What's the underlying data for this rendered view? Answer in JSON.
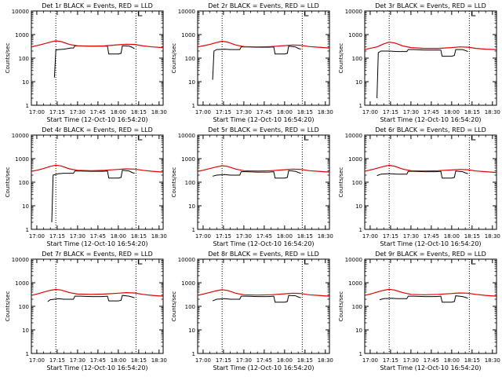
{
  "colors": {
    "events": "#000000",
    "lld": "#e00000",
    "axis": "#000000",
    "background": "#ffffff"
  },
  "xlabel": "Start Time (12-Oct-10 16:54:20)",
  "ylabel": "Counts/sec",
  "xticks": [
    "17:00",
    "17:15",
    "17:30",
    "17:45",
    "18:00",
    "18:15",
    "18:30"
  ],
  "yticks": [
    "1",
    "10",
    "100",
    "1000",
    "10000"
  ],
  "chart_data": [
    {
      "type": "line",
      "title": "Det 1r BLACK = Events, RED = LLD",
      "xlabel": "Start Time (12-Oct-10 16:54:20)",
      "ylabel": "Counts/sec",
      "y_scale": "log",
      "ylim": [
        1,
        10000
      ],
      "xlim": [
        "16:56",
        "18:33"
      ],
      "vlines": [
        "17:14",
        "18:13"
      ],
      "series": [
        {
          "x": [
            "17:13",
            "17:14",
            "17:16",
            "17:20",
            "17:25",
            "17:27",
            "17:28",
            "17:32",
            "17:40",
            "17:48",
            "17:52",
            "17:53",
            "18:00",
            "18:02",
            "18:03",
            "18:08",
            "18:10",
            "18:12"
          ],
          "y": [
            15,
            220,
            230,
            240,
            270,
            270,
            330,
            330,
            320,
            320,
            320,
            150,
            150,
            160,
            330,
            320,
            290,
            250
          ]
        },
        {
          "x": [
            "16:56",
            "17:00",
            "17:05",
            "17:10",
            "17:14",
            "17:18",
            "17:24",
            "17:30",
            "17:40",
            "17:50",
            "18:00",
            "18:06",
            "18:12",
            "18:18",
            "18:25",
            "18:33"
          ],
          "y": [
            300,
            340,
            400,
            480,
            540,
            500,
            380,
            330,
            320,
            330,
            370,
            390,
            380,
            330,
            300,
            280
          ]
        }
      ]
    },
    {
      "type": "line",
      "title": "Det 2r BLACK = Events, RED = LLD",
      "xlabel": "Start Time (12-Oct-10 16:54:20)",
      "ylabel": "Counts/sec",
      "y_scale": "log",
      "ylim": [
        1,
        10000
      ],
      "xlim": [
        "16:56",
        "18:33"
      ],
      "vlines": [
        "17:14",
        "18:13"
      ],
      "series": [
        {
          "x": [
            "17:07",
            "17:08",
            "17:10",
            "17:16",
            "17:20",
            "17:27",
            "17:28",
            "17:32",
            "17:40",
            "17:48",
            "17:52",
            "17:53",
            "18:00",
            "18:02",
            "18:03",
            "18:08",
            "18:10",
            "18:12"
          ],
          "y": [
            12,
            200,
            230,
            240,
            230,
            230,
            300,
            300,
            290,
            290,
            300,
            150,
            150,
            160,
            320,
            300,
            260,
            240
          ]
        },
        {
          "x": [
            "16:56",
            "17:00",
            "17:05",
            "17:10",
            "17:14",
            "17:18",
            "17:24",
            "17:30",
            "17:40",
            "17:50",
            "18:00",
            "18:06",
            "18:12",
            "18:18",
            "18:25",
            "18:33"
          ],
          "y": [
            300,
            330,
            380,
            460,
            520,
            480,
            360,
            310,
            300,
            310,
            340,
            360,
            350,
            310,
            290,
            270
          ]
        }
      ]
    },
    {
      "type": "line",
      "title": "Det 3r BLACK = Events, RED = LLD",
      "xlabel": "Start Time (12-Oct-10 16:54:20)",
      "ylabel": "Counts/sec",
      "y_scale": "log",
      "ylim": [
        1,
        10000
      ],
      "xlim": [
        "16:56",
        "18:33"
      ],
      "vlines": [
        "17:14",
        "18:13"
      ],
      "series": [
        {
          "x": [
            "17:05",
            "17:06",
            "17:08",
            "17:14",
            "17:20",
            "17:27",
            "17:28",
            "17:32",
            "17:40",
            "17:48",
            "17:52",
            "17:53",
            "18:00",
            "18:02",
            "18:03",
            "18:08",
            "18:10",
            "18:12"
          ],
          "y": [
            2,
            170,
            200,
            200,
            190,
            190,
            230,
            230,
            220,
            220,
            220,
            120,
            120,
            130,
            230,
            230,
            210,
            190
          ]
        },
        {
          "x": [
            "16:56",
            "17:00",
            "17:05",
            "17:10",
            "17:14",
            "17:18",
            "17:24",
            "17:30",
            "17:40",
            "17:50",
            "18:00",
            "18:06",
            "18:12",
            "18:18",
            "18:25",
            "18:33"
          ],
          "y": [
            230,
            260,
            300,
            400,
            480,
            440,
            330,
            280,
            260,
            260,
            280,
            300,
            290,
            260,
            240,
            230
          ]
        }
      ]
    },
    {
      "type": "line",
      "title": "Det 4r BLACK = Events, RED = LLD",
      "xlabel": "Start Time (12-Oct-10 16:54:20)",
      "ylabel": "Counts/sec",
      "y_scale": "log",
      "ylim": [
        1,
        10000
      ],
      "xlim": [
        "16:56",
        "18:33"
      ],
      "vlines": [
        "17:14",
        "18:13"
      ],
      "series": [
        {
          "x": [
            "17:11",
            "17:12",
            "17:16",
            "17:20",
            "17:27",
            "17:28",
            "17:32",
            "17:40",
            "17:48",
            "17:52",
            "17:53",
            "18:00",
            "18:02",
            "18:03",
            "18:08",
            "18:10",
            "18:12"
          ],
          "y": [
            2,
            200,
            230,
            240,
            240,
            300,
            300,
            290,
            290,
            300,
            150,
            150,
            160,
            320,
            300,
            260,
            240
          ]
        },
        {
          "x": [
            "16:56",
            "17:00",
            "17:05",
            "17:10",
            "17:14",
            "17:18",
            "17:24",
            "17:30",
            "17:40",
            "17:50",
            "18:00",
            "18:06",
            "18:12",
            "18:18",
            "18:25",
            "18:33"
          ],
          "y": [
            290,
            320,
            380,
            470,
            530,
            490,
            370,
            320,
            310,
            320,
            350,
            370,
            360,
            320,
            290,
            270
          ]
        }
      ]
    },
    {
      "type": "line",
      "title": "Det 5r BLACK = Events, RED = LLD",
      "xlabel": "Start Time (12-Oct-10 16:54:20)",
      "ylabel": "Counts/sec",
      "y_scale": "log",
      "ylim": [
        1,
        10000
      ],
      "xlim": [
        "16:56",
        "18:33"
      ],
      "vlines": [
        "17:14",
        "18:13"
      ],
      "series": [
        {
          "x": [
            "17:07",
            "17:10",
            "17:16",
            "17:20",
            "17:27",
            "17:28",
            "17:32",
            "17:40",
            "17:48",
            "17:52",
            "17:53",
            "18:00",
            "18:02",
            "18:03",
            "18:08",
            "18:10",
            "18:12"
          ],
          "y": [
            180,
            200,
            210,
            200,
            200,
            280,
            280,
            270,
            270,
            280,
            150,
            150,
            160,
            310,
            290,
            260,
            240
          ]
        },
        {
          "x": [
            "16:56",
            "17:00",
            "17:05",
            "17:10",
            "17:14",
            "17:18",
            "17:24",
            "17:30",
            "17:40",
            "17:50",
            "18:00",
            "18:06",
            "18:12",
            "18:18",
            "18:25",
            "18:33"
          ],
          "y": [
            290,
            320,
            380,
            450,
            500,
            470,
            360,
            310,
            300,
            310,
            340,
            360,
            350,
            310,
            290,
            270
          ]
        }
      ]
    },
    {
      "type": "line",
      "title": "Det 6r BLACK = Events, RED = LLD",
      "xlabel": "Start Time (12-Oct-10 16:54:20)",
      "ylabel": "Counts/sec",
      "y_scale": "log",
      "ylim": [
        1,
        10000
      ],
      "xlim": [
        "16:56",
        "18:33"
      ],
      "vlines": [
        "17:14",
        "18:13"
      ],
      "series": [
        {
          "x": [
            "17:05",
            "17:08",
            "17:14",
            "17:20",
            "17:27",
            "17:28",
            "17:32",
            "17:40",
            "17:48",
            "17:52",
            "17:53",
            "18:00",
            "18:02",
            "18:03",
            "18:08",
            "18:10",
            "18:12"
          ],
          "y": [
            190,
            220,
            230,
            220,
            220,
            290,
            290,
            280,
            280,
            290,
            150,
            150,
            160,
            300,
            280,
            250,
            230
          ]
        },
        {
          "x": [
            "16:56",
            "17:00",
            "17:05",
            "17:10",
            "17:14",
            "17:18",
            "17:24",
            "17:30",
            "17:40",
            "17:50",
            "18:00",
            "18:06",
            "18:12",
            "18:18",
            "18:25",
            "18:33"
          ],
          "y": [
            290,
            330,
            390,
            470,
            520,
            480,
            360,
            310,
            300,
            310,
            330,
            350,
            340,
            300,
            280,
            260
          ]
        }
      ]
    },
    {
      "type": "line",
      "title": "Det 7r BLACK = Events, RED = LLD",
      "xlabel": "Start Time (12-Oct-10 16:54:20)",
      "ylabel": "Counts/sec",
      "y_scale": "log",
      "ylim": [
        1,
        10000
      ],
      "xlim": [
        "16:56",
        "18:33"
      ],
      "vlines": [
        "17:14",
        "18:13"
      ],
      "series": [
        {
          "x": [
            "17:08",
            "17:10",
            "17:16",
            "17:20",
            "17:27",
            "17:28",
            "17:32",
            "17:40",
            "17:48",
            "17:52",
            "17:53",
            "18:00",
            "18:02",
            "18:03",
            "18:08",
            "18:10",
            "18:12"
          ],
          "y": [
            160,
            190,
            210,
            200,
            200,
            270,
            270,
            260,
            260,
            270,
            170,
            170,
            180,
            290,
            270,
            250,
            230
          ]
        },
        {
          "x": [
            "16:56",
            "17:00",
            "17:05",
            "17:10",
            "17:14",
            "17:18",
            "17:24",
            "17:30",
            "17:40",
            "17:50",
            "18:00",
            "18:06",
            "18:12",
            "18:18",
            "18:25",
            "18:33"
          ],
          "y": [
            290,
            330,
            400,
            480,
            520,
            490,
            380,
            330,
            320,
            330,
            360,
            380,
            370,
            320,
            290,
            270
          ]
        }
      ]
    },
    {
      "type": "line",
      "title": "Det 8r BLACK = Events, RED = LLD",
      "xlabel": "Start Time (12-Oct-10 16:54:20)",
      "ylabel": "Counts/sec",
      "y_scale": "log",
      "ylim": [
        1,
        10000
      ],
      "xlim": [
        "16:56",
        "18:33"
      ],
      "vlines": [
        "17:14",
        "18:13"
      ],
      "series": [
        {
          "x": [
            "17:07",
            "17:10",
            "17:16",
            "17:20",
            "17:27",
            "17:28",
            "17:32",
            "17:40",
            "17:48",
            "17:52",
            "17:53",
            "18:00",
            "18:02",
            "18:03",
            "18:08",
            "18:10",
            "18:12"
          ],
          "y": [
            170,
            200,
            210,
            200,
            200,
            270,
            270,
            260,
            260,
            270,
            150,
            150,
            160,
            290,
            280,
            250,
            230
          ]
        },
        {
          "x": [
            "16:56",
            "17:00",
            "17:05",
            "17:10",
            "17:14",
            "17:18",
            "17:24",
            "17:30",
            "17:40",
            "17:50",
            "18:00",
            "18:06",
            "18:12",
            "18:18",
            "18:25",
            "18:33"
          ],
          "y": [
            290,
            330,
            390,
            460,
            510,
            470,
            360,
            310,
            300,
            310,
            340,
            360,
            350,
            310,
            290,
            270
          ]
        }
      ]
    },
    {
      "type": "line",
      "title": "Det 9r BLACK = Events, RED = LLD",
      "xlabel": "Start Time (12-Oct-10 16:54:20)",
      "ylabel": "Counts/sec",
      "y_scale": "log",
      "ylim": [
        1,
        10000
      ],
      "xlim": [
        "16:56",
        "18:33"
      ],
      "vlines": [
        "17:14",
        "18:13"
      ],
      "series": [
        {
          "x": [
            "17:07",
            "17:10",
            "17:16",
            "17:20",
            "17:27",
            "17:28",
            "17:32",
            "17:40",
            "17:48",
            "17:52",
            "17:53",
            "18:00",
            "18:02",
            "18:03",
            "18:08",
            "18:10",
            "18:12"
          ],
          "y": [
            190,
            210,
            220,
            210,
            210,
            270,
            270,
            260,
            260,
            270,
            150,
            150,
            160,
            280,
            260,
            240,
            220
          ]
        },
        {
          "x": [
            "16:56",
            "17:00",
            "17:05",
            "17:10",
            "17:14",
            "17:18",
            "17:24",
            "17:30",
            "17:40",
            "17:50",
            "18:00",
            "18:06",
            "18:12",
            "18:18",
            "18:25",
            "18:33"
          ],
          "y": [
            290,
            330,
            400,
            480,
            530,
            490,
            380,
            320,
            310,
            320,
            350,
            370,
            360,
            320,
            290,
            270
          ]
        }
      ]
    }
  ]
}
